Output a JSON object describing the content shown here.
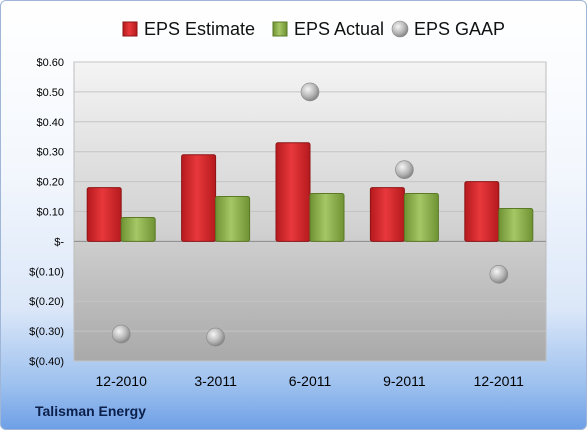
{
  "company": "Talisman Energy",
  "chart_data": {
    "type": "bar",
    "categories": [
      "12-2010",
      "3-2011",
      "6-2011",
      "9-2011",
      "12-2011"
    ],
    "series": [
      {
        "name": "EPS Estimate",
        "type": "bar",
        "color": "#d8262a",
        "values": [
          0.18,
          0.29,
          0.33,
          0.18,
          0.2
        ]
      },
      {
        "name": "EPS Actual",
        "type": "bar",
        "color": "#8fb44a",
        "values": [
          0.08,
          0.15,
          0.16,
          0.16,
          0.11
        ]
      },
      {
        "name": "EPS GAAP",
        "type": "scatter",
        "color": "#b0b0b0",
        "values": [
          -0.31,
          -0.32,
          0.5,
          0.24,
          -0.11
        ]
      }
    ],
    "ylim": [
      -0.4,
      0.6
    ],
    "yticks": [
      0.6,
      0.5,
      0.4,
      0.3,
      0.2,
      0.1,
      0.0,
      -0.1,
      -0.2,
      -0.3,
      -0.4
    ],
    "ytick_labels": [
      "$0.60",
      "$0.50",
      "$0.40",
      "$0.30",
      "$0.20",
      "$0.10",
      "$-",
      "$(0.10)",
      "$(0.20)",
      "$(0.30)",
      "$(0.40)"
    ],
    "legend_position": "top",
    "grid": true
  }
}
